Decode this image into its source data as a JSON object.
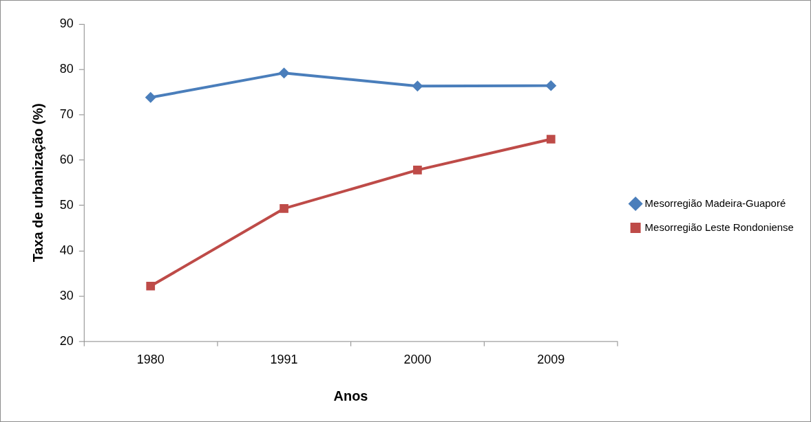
{
  "chart_data": {
    "type": "line",
    "xlabel": "Anos",
    "ylabel": "Taxa de urbanização (%)",
    "categories": [
      "1980",
      "1991",
      "2000",
      "2009"
    ],
    "series": [
      {
        "name": "Mesorregião Madeira-Guaporé",
        "color": "#4a7ebb",
        "marker": "diamond",
        "values": [
          73.8,
          79.2,
          76.3,
          76.4
        ]
      },
      {
        "name": "Mesorregião Leste Rondoniense",
        "color": "#be4b48",
        "marker": "square",
        "values": [
          32.2,
          49.3,
          57.8,
          64.6
        ]
      }
    ],
    "ylim": [
      20,
      90
    ],
    "yticks": [
      20,
      30,
      40,
      50,
      60,
      70,
      80,
      90
    ],
    "grid": false,
    "legend": "right"
  }
}
